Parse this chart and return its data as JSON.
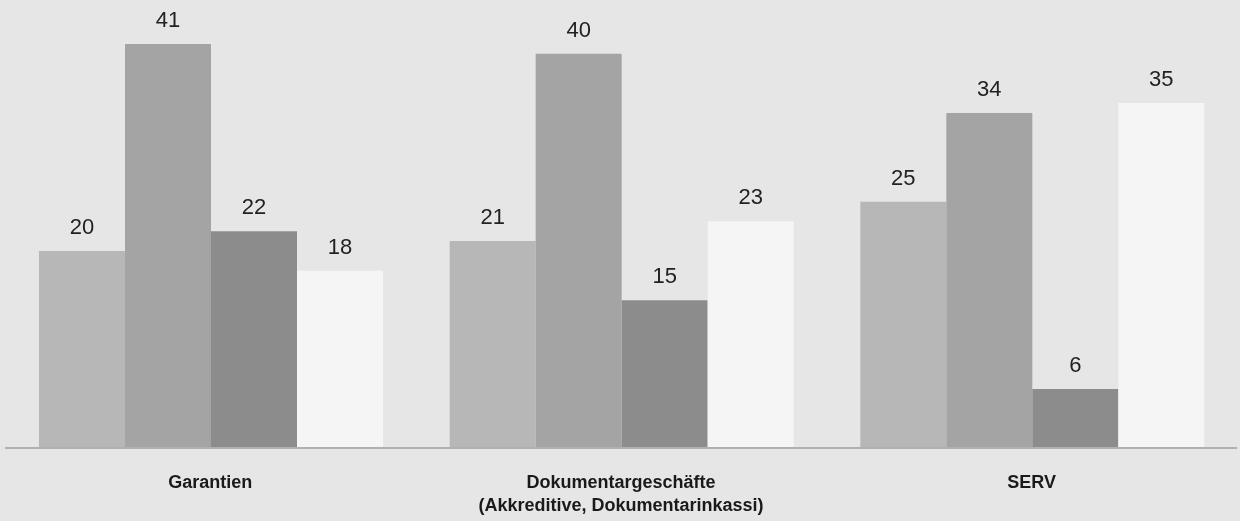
{
  "chart_data": {
    "type": "bar",
    "categories": [
      "Garantien",
      "Dokumentargeschäfte\n(Akkreditive, Dokumentarinkassi)",
      "SERV"
    ],
    "series": [
      {
        "color": "#b7b7b7",
        "values": [
          20,
          21,
          25
        ]
      },
      {
        "color": "#a4a4a4",
        "values": [
          41,
          40,
          34
        ]
      },
      {
        "color": "#8c8c8c",
        "values": [
          22,
          15,
          6
        ]
      },
      {
        "color": "#f5f5f5",
        "values": [
          18,
          23,
          35
        ]
      }
    ],
    "data_labels": true,
    "tick_labels": "x"
  }
}
